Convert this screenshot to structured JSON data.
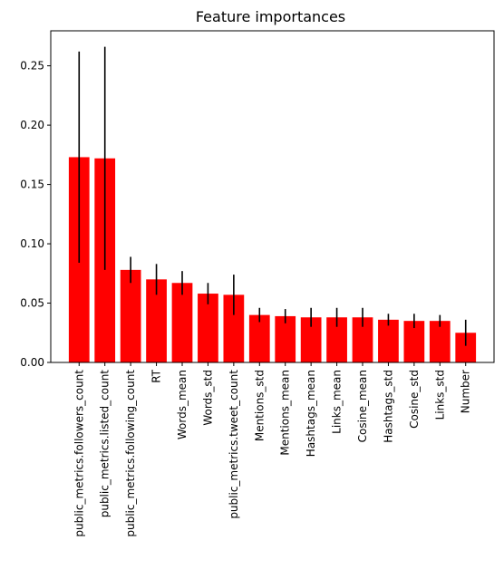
{
  "chart_data": {
    "type": "bar",
    "title": "Feature importances",
    "xlabel": "",
    "ylabel": "",
    "categories": [
      "public_metrics.followers_count",
      "public_metrics.listed_count",
      "public_metrics.following_count",
      "RT",
      "Words_mean",
      "Words_std",
      "public_metrics.tweet_count",
      "Mentions_std",
      "Mentions_mean",
      "Hashtags_mean",
      "Links_mean",
      "Cosine_mean",
      "Hashtags_std",
      "Cosine_std",
      "Links_std",
      "Number"
    ],
    "values": [
      0.173,
      0.172,
      0.078,
      0.07,
      0.067,
      0.058,
      0.057,
      0.04,
      0.039,
      0.038,
      0.038,
      0.038,
      0.036,
      0.035,
      0.035,
      0.025
    ],
    "errors": [
      0.089,
      0.094,
      0.011,
      0.013,
      0.01,
      0.009,
      0.017,
      0.006,
      0.006,
      0.008,
      0.008,
      0.008,
      0.005,
      0.006,
      0.005,
      0.011
    ],
    "yticks": [
      "0.00",
      "0.05",
      "0.10",
      "0.15",
      "0.20",
      "0.25"
    ],
    "ylim": [
      0,
      0.2795
    ],
    "grid": false,
    "bar_color": "#ff0000",
    "error_color": "#000000"
  }
}
